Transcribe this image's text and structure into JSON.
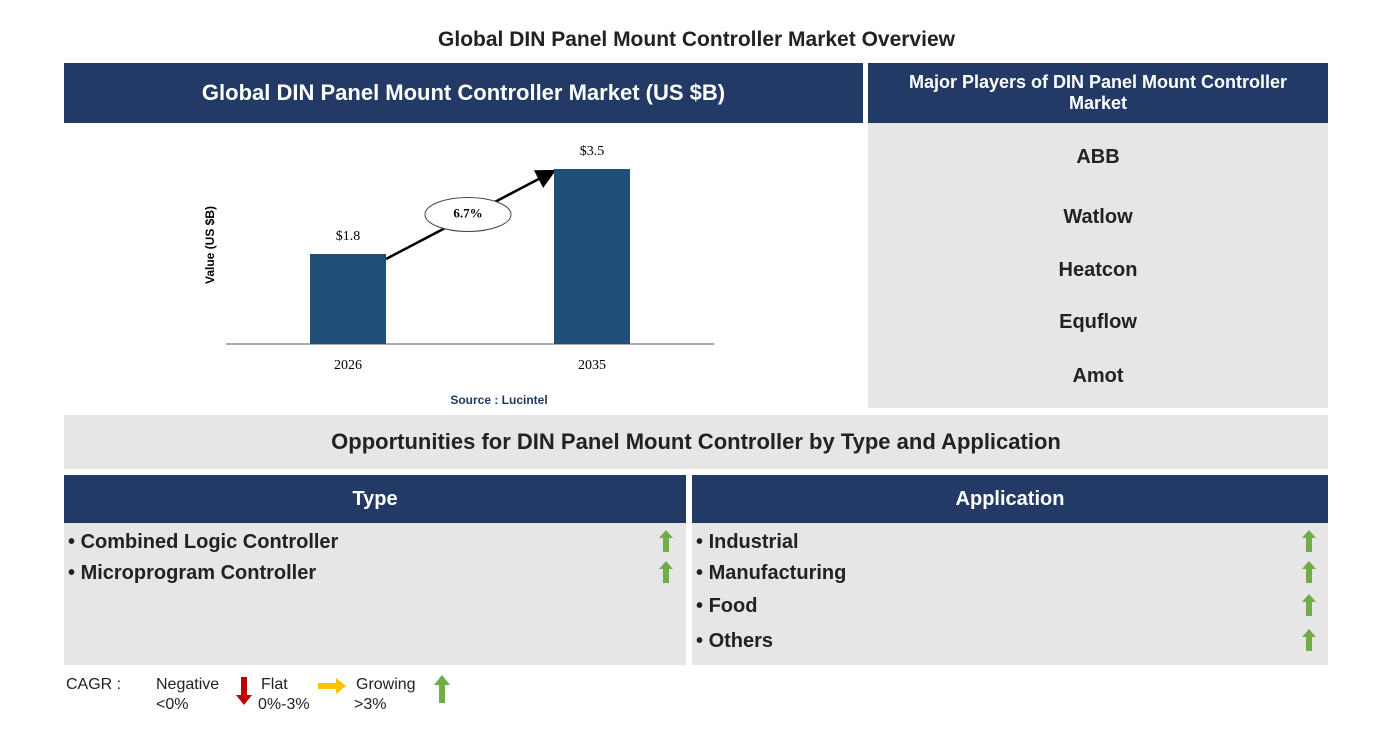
{
  "header": {
    "title": "Global DIN Panel Mount Controller Market Overview"
  },
  "chart_data": {
    "type": "bar",
    "title": "Global DIN Panel Mount Controller Market (US $B)",
    "y_label": "Value (US $B)",
    "categories": [
      "2026",
      "2035"
    ],
    "values": [
      1.8,
      3.5
    ],
    "value_labels": [
      "$1.8",
      "$3.5"
    ],
    "color": "#1f4e79",
    "ylim": [
      0,
      4
    ],
    "annotation": "6.7%",
    "source": "Source : Lucintel"
  },
  "players": {
    "title": "Major Players of DIN Panel Mount Controller Market",
    "items": [
      "ABB",
      "Watlow",
      "Heatcon",
      "Equflow",
      "Amot"
    ]
  },
  "opportunities": {
    "title": "Opportunities for DIN Panel Mount Controller by Type and Application",
    "type": {
      "title": "Type",
      "items": [
        "Combined Logic Controller",
        "Microprogram Controller"
      ]
    },
    "application": {
      "title": "Application",
      "items": [
        "Industrial",
        "Manufacturing",
        "Food",
        "Others"
      ]
    }
  },
  "legend": {
    "label": "CAGR :",
    "negative": {
      "label": "Negative",
      "range": "<0%"
    },
    "flat": {
      "label": "Flat",
      "range": "0%-3%"
    },
    "growing": {
      "label": "Growing",
      "range": ">3%"
    }
  }
}
